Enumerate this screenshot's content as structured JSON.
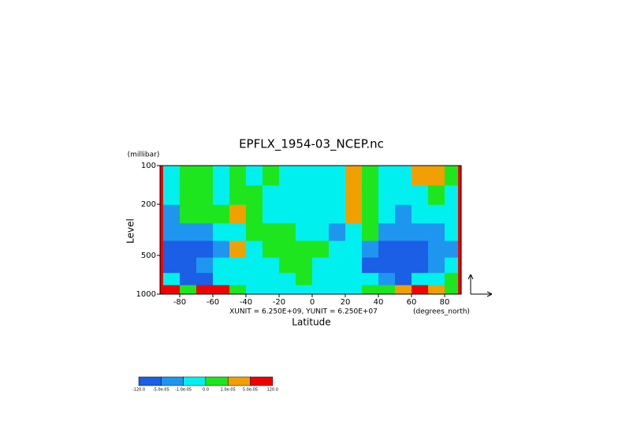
{
  "chart_data": {
    "type": "contour",
    "title": "EPFLX_1954-03_NCEP.nc",
    "x_label": "Latitude",
    "x_unit": "(degrees_north)",
    "y_label": "Level",
    "y_unit": "(millibar)",
    "note": "XUNIT = 6.250E+09, YUNIT = 6.250E+07",
    "xlim": [
      -90,
      90
    ],
    "xticks": [
      -80,
      -60,
      -40,
      -20,
      0,
      20,
      40,
      60,
      80
    ],
    "ylim": [
      100,
      1000
    ],
    "yticks": [
      100,
      200,
      500,
      1000
    ],
    "y_log": true,
    "y_inverted": true,
    "x": [
      -85,
      -75,
      -65,
      -55,
      -45,
      -35,
      -25,
      -15,
      -5,
      5,
      15,
      25,
      35,
      45,
      55,
      65,
      75,
      85
    ],
    "y": [
      120,
      170,
      240,
      330,
      450,
      600,
      780,
      930
    ],
    "z": [
      [
        -5e-06,
        5e-06,
        5e-06,
        -5e-06,
        5e-06,
        -5e-06,
        5e-06,
        -5e-06,
        -5e-06,
        -5e-06,
        -5e-06,
        3e-05,
        5e-06,
        -5e-06,
        -5e-06,
        3e-05,
        3e-05,
        5e-06
      ],
      [
        -5e-06,
        5e-06,
        5e-06,
        -5e-06,
        5e-06,
        5e-06,
        -5e-06,
        -5e-06,
        -5e-06,
        -5e-06,
        -5e-06,
        3e-05,
        5e-06,
        -5e-06,
        -5e-06,
        -5e-06,
        5e-06,
        -5e-06
      ],
      [
        -3e-05,
        5e-06,
        5e-06,
        5e-06,
        3e-05,
        5e-06,
        -5e-06,
        -5e-06,
        -5e-06,
        -5e-06,
        -5e-06,
        3e-05,
        5e-06,
        -5e-06,
        -3e-05,
        -5e-06,
        -5e-06,
        -5e-06
      ],
      [
        -3e-05,
        -3e-05,
        -3e-05,
        -5e-06,
        -5e-06,
        5e-06,
        5e-06,
        5e-06,
        -5e-06,
        -5e-06,
        -3e-05,
        -5e-06,
        5e-06,
        -3e-05,
        -3e-05,
        -3e-05,
        -3e-05,
        -5e-06
      ],
      [
        -0.0001,
        -0.0001,
        -0.0001,
        -3e-05,
        3e-05,
        -5e-06,
        5e-06,
        5e-06,
        5e-06,
        5e-06,
        -5e-06,
        -5e-06,
        -3e-05,
        -0.0001,
        -0.0001,
        -0.0001,
        -3e-05,
        -3e-05
      ],
      [
        -0.0001,
        -0.0001,
        -3e-05,
        -5e-06,
        -5e-06,
        -5e-06,
        -5e-06,
        5e-06,
        5e-06,
        -5e-06,
        -5e-06,
        -5e-06,
        -0.0001,
        -0.0001,
        -0.0001,
        -0.0001,
        -3e-05,
        -5e-06
      ],
      [
        -5e-06,
        -0.0001,
        -0.0001,
        -5e-06,
        -5e-06,
        -5e-06,
        -5e-06,
        -5e-06,
        5e-06,
        -5e-06,
        -5e-06,
        -5e-06,
        -5e-06,
        -3e-05,
        -0.0001,
        -5e-06,
        -5e-06,
        5e-06
      ],
      [
        0.0001,
        5e-06,
        0.0001,
        0.0001,
        5e-06,
        -5e-06,
        -5e-06,
        -5e-06,
        -5e-06,
        -5e-06,
        -5e-06,
        -5e-06,
        5e-06,
        5e-06,
        3e-05,
        0.0001,
        3e-05,
        5e-06
      ]
    ],
    "levels": [
      {
        "value": -120,
        "label": "-120.0"
      },
      {
        "value": -5e-05,
        "label": "-5.0e-05"
      },
      {
        "value": -1e-05,
        "label": "-1.0e-05"
      },
      {
        "value": 0,
        "label": "0.0"
      },
      {
        "value": 1e-05,
        "label": "1.0e-05"
      },
      {
        "value": 5e-05,
        "label": "5.0e-05"
      },
      {
        "value": 120,
        "label": "120.0"
      }
    ],
    "colors": [
      "#1a5fe6",
      "#1e96f0",
      "#00f0f0",
      "#1ee61e",
      "#f0a000",
      "#f00000"
    ]
  }
}
